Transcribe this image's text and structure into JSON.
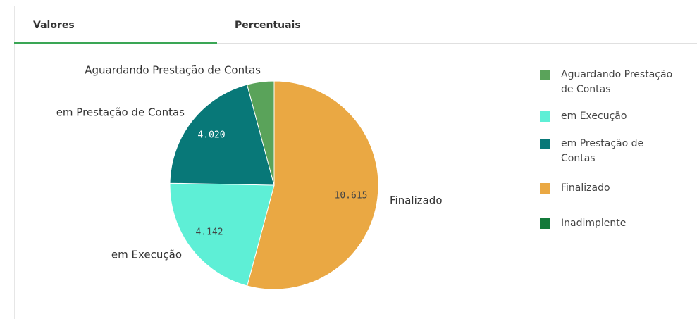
{
  "tabs": [
    "Valores",
    "Percentuais"
  ],
  "chart_data": {
    "type": "pie",
    "categories": [
      "Aguardando Prestação de Contas",
      "em Execução",
      "em Prestação de Contas",
      "Finalizado",
      "Inadimplente"
    ],
    "values": [
      820,
      4142,
      4020,
      10615,
      0
    ],
    "value_labels": [
      null,
      "4.142",
      "4.020",
      "10.615",
      null
    ],
    "colors": [
      "#5aa35a",
      "#5eefd6",
      "#087878",
      "#eaa843",
      "#137a3a"
    ],
    "legend": "right"
  }
}
